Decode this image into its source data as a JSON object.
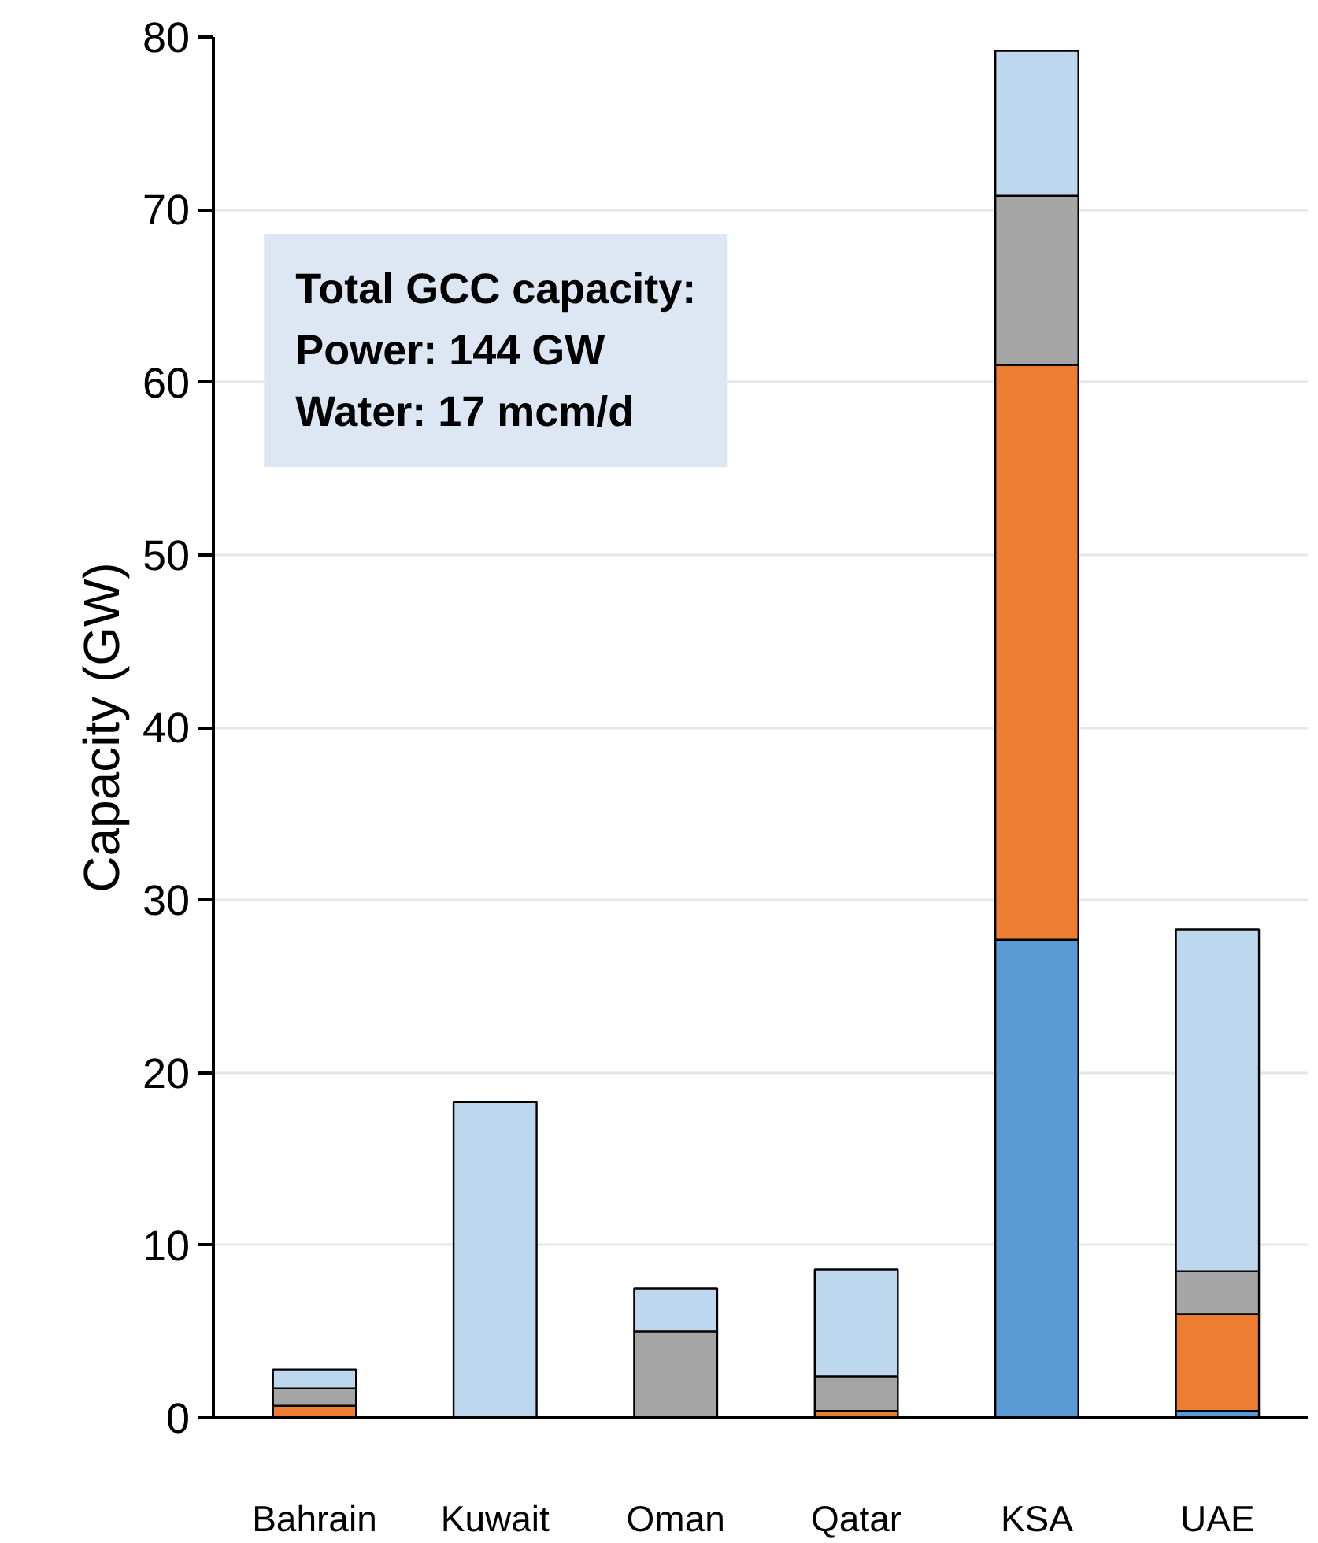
{
  "chart_data": {
    "type": "bar",
    "stacked": true,
    "ylabel": "Capacity (GW)",
    "categories": [
      "Bahrain",
      "Kuwait",
      "Oman",
      "Qatar",
      "KSA",
      "UAE"
    ],
    "series": [
      {
        "color": "#5b9bd5",
        "values": [
          0,
          0,
          0,
          0,
          27.7,
          0.4
        ]
      },
      {
        "color": "#ed7d31",
        "values": [
          0.7,
          0,
          0,
          0.4,
          33.3,
          5.6
        ]
      },
      {
        "color": "#a5a5a5",
        "values": [
          1.0,
          0,
          5.0,
          2.0,
          9.8,
          2.5
        ]
      },
      {
        "color": "#bdd7ee",
        "values": [
          1.1,
          18.3,
          2.5,
          6.2,
          8.4,
          19.8
        ]
      }
    ],
    "ylim": [
      0,
      80
    ],
    "yticks": [
      0,
      10,
      20,
      30,
      40,
      50,
      60,
      70,
      80
    ],
    "grid": "y",
    "annotations": [
      "Total GCC capacity:",
      "Power: 144 GW",
      "Water: 17 mcm/d"
    ]
  }
}
